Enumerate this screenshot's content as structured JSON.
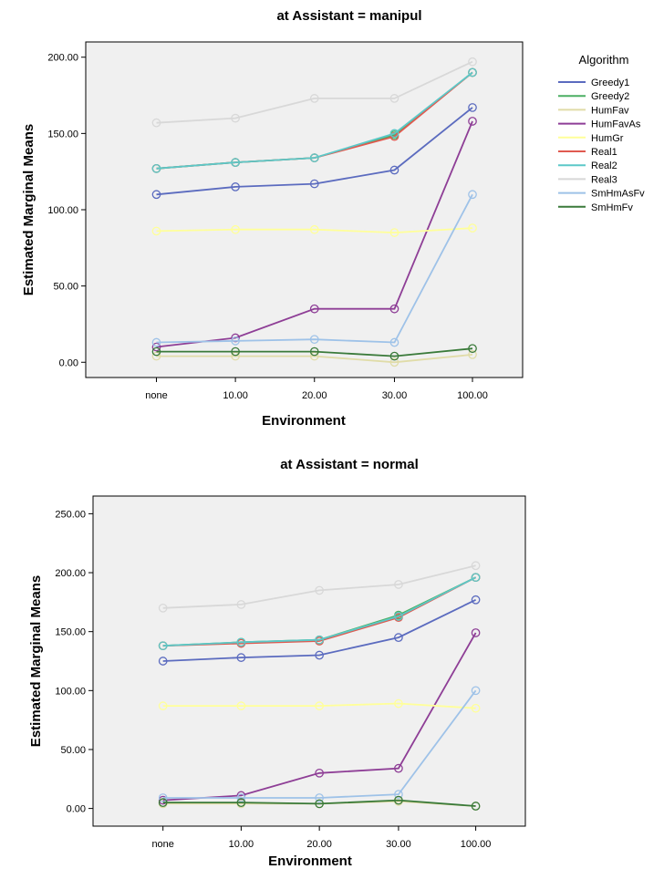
{
  "chart_data": [
    {
      "type": "line",
      "title": "at Assistant = manipul",
      "xlabel": "Environment",
      "ylabel": "Estimated Marginal Means",
      "categories": [
        "none",
        "10.00",
        "20.00",
        "30.00",
        "100.00"
      ],
      "ylim": [
        -10,
        210
      ],
      "yticks": [
        "0.00",
        "50.00",
        "100.00",
        "150.00",
        "200.00"
      ],
      "yticks_values": [
        0,
        50,
        100,
        150,
        200
      ],
      "legend_title": "Algorithm",
      "legend_position": "right",
      "series": [
        {
          "name": "Greedy1",
          "color": "#5b6bbf",
          "values": [
            110,
            115,
            117,
            126,
            167
          ]
        },
        {
          "name": "Greedy2",
          "color": "#4caf63",
          "values": [
            127,
            131,
            134,
            149,
            190
          ]
        },
        {
          "name": "HumFav",
          "color": "#e0dca8",
          "values": [
            4,
            4,
            4,
            0,
            5
          ]
        },
        {
          "name": "HumFavAs",
          "color": "#8e3e96",
          "values": [
            10,
            16,
            35,
            35,
            158
          ]
        },
        {
          "name": "HumGr",
          "color": "#ffff99",
          "values": [
            86,
            87,
            87,
            85,
            88
          ]
        },
        {
          "name": "Real1",
          "color": "#e05a50",
          "values": [
            127,
            131,
            134,
            148,
            190
          ]
        },
        {
          "name": "Real2",
          "color": "#5cc8c8",
          "values": [
            127,
            131,
            134,
            150,
            190
          ]
        },
        {
          "name": "Real3",
          "color": "#d8d8d8",
          "values": [
            157,
            160,
            173,
            173,
            197
          ]
        },
        {
          "name": "SmHmAsFv",
          "color": "#9ec2e8",
          "values": [
            13,
            14,
            15,
            13,
            110
          ]
        },
        {
          "name": "SmHmFv",
          "color": "#3a7a3a",
          "values": [
            7,
            7,
            7,
            4,
            9
          ]
        }
      ]
    },
    {
      "type": "line",
      "title": "at Assistant = normal",
      "xlabel": "Environment",
      "ylabel": "Estimated Marginal Means",
      "categories": [
        "none",
        "10.00",
        "20.00",
        "30.00",
        "100.00"
      ],
      "ylim": [
        -15,
        265
      ],
      "yticks": [
        "0.00",
        "50.00",
        "100.00",
        "150.00",
        "200.00",
        "250.00"
      ],
      "yticks_values": [
        0,
        50,
        100,
        150,
        200,
        250
      ],
      "series": [
        {
          "name": "Greedy1",
          "color": "#5b6bbf",
          "values": [
            125,
            128,
            130,
            145,
            177
          ]
        },
        {
          "name": "Greedy2",
          "color": "#4caf63",
          "values": [
            138,
            141,
            143,
            164,
            196
          ]
        },
        {
          "name": "HumFav",
          "color": "#e0dca8",
          "values": [
            4,
            4,
            4,
            6,
            2
          ]
        },
        {
          "name": "HumFavAs",
          "color": "#8e3e96",
          "values": [
            7,
            11,
            30,
            34,
            149
          ]
        },
        {
          "name": "HumGr",
          "color": "#ffff99",
          "values": [
            87,
            87,
            87,
            89,
            85
          ]
        },
        {
          "name": "Real1",
          "color": "#e05a50",
          "values": [
            138,
            140,
            142,
            162,
            196
          ]
        },
        {
          "name": "Real2",
          "color": "#5cc8c8",
          "values": [
            138,
            141,
            143,
            163,
            196
          ]
        },
        {
          "name": "Real3",
          "color": "#d8d8d8",
          "values": [
            170,
            173,
            185,
            190,
            206
          ]
        },
        {
          "name": "SmHmAsFv",
          "color": "#9ec2e8",
          "values": [
            9,
            9,
            9,
            12,
            100
          ]
        },
        {
          "name": "SmHmFv",
          "color": "#3a7a3a",
          "values": [
            5,
            5,
            4,
            7,
            2
          ]
        }
      ]
    }
  ]
}
